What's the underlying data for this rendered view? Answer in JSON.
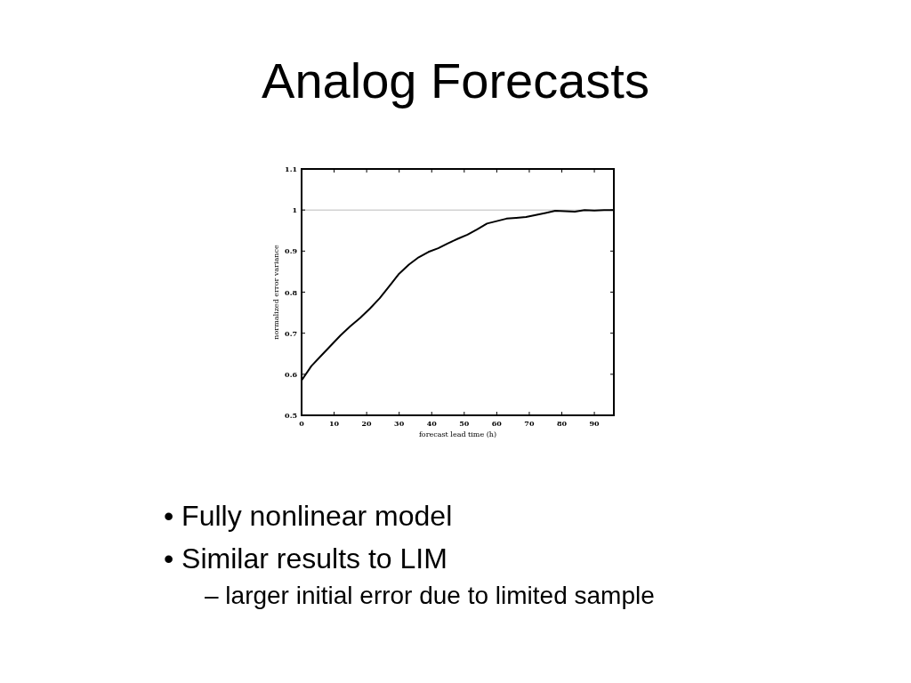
{
  "chart_data": {
    "type": "line",
    "title": "Analog Forecasts",
    "xlabel": "forecast lead time (h)",
    "ylabel": "normalized error variance",
    "x": [
      0,
      3,
      6,
      9,
      12,
      15,
      18,
      21,
      24,
      27,
      30,
      33,
      36,
      39,
      42,
      45,
      48,
      51,
      54,
      57,
      60,
      63,
      66,
      69,
      72,
      75,
      78,
      81,
      84,
      87,
      90,
      93,
      96
    ],
    "series": [
      {
        "color": "#000000",
        "values": [
          0.585,
          0.62,
          0.645,
          0.67,
          0.695,
          0.717,
          0.737,
          0.76,
          0.785,
          0.815,
          0.845,
          0.867,
          0.885,
          0.898,
          0.907,
          0.919,
          0.93,
          0.94,
          0.953,
          0.967,
          0.973,
          0.979,
          0.981,
          0.983,
          0.988,
          0.993,
          0.998,
          0.997,
          0.996,
          1.0,
          0.999,
          1.0,
          1.0
        ]
      }
    ],
    "xlim": [
      0,
      96
    ],
    "xticks": [
      0,
      10,
      20,
      30,
      40,
      50,
      60,
      70,
      80,
      90
    ],
    "ylim": [
      0.5,
      1.1
    ],
    "yticks": [
      0.5,
      0.6,
      0.7,
      0.8,
      0.9,
      1,
      1.1
    ],
    "ref_lines": [
      {
        "axis": "y",
        "value": 1,
        "color": "#bbbbbb"
      }
    ],
    "grid": false,
    "marker": "none",
    "line_style": "solid",
    "annotations": [
      "• Fully nonlinear model",
      "• Similar results to LIM",
      "– larger initial error due to limited sample"
    ]
  }
}
